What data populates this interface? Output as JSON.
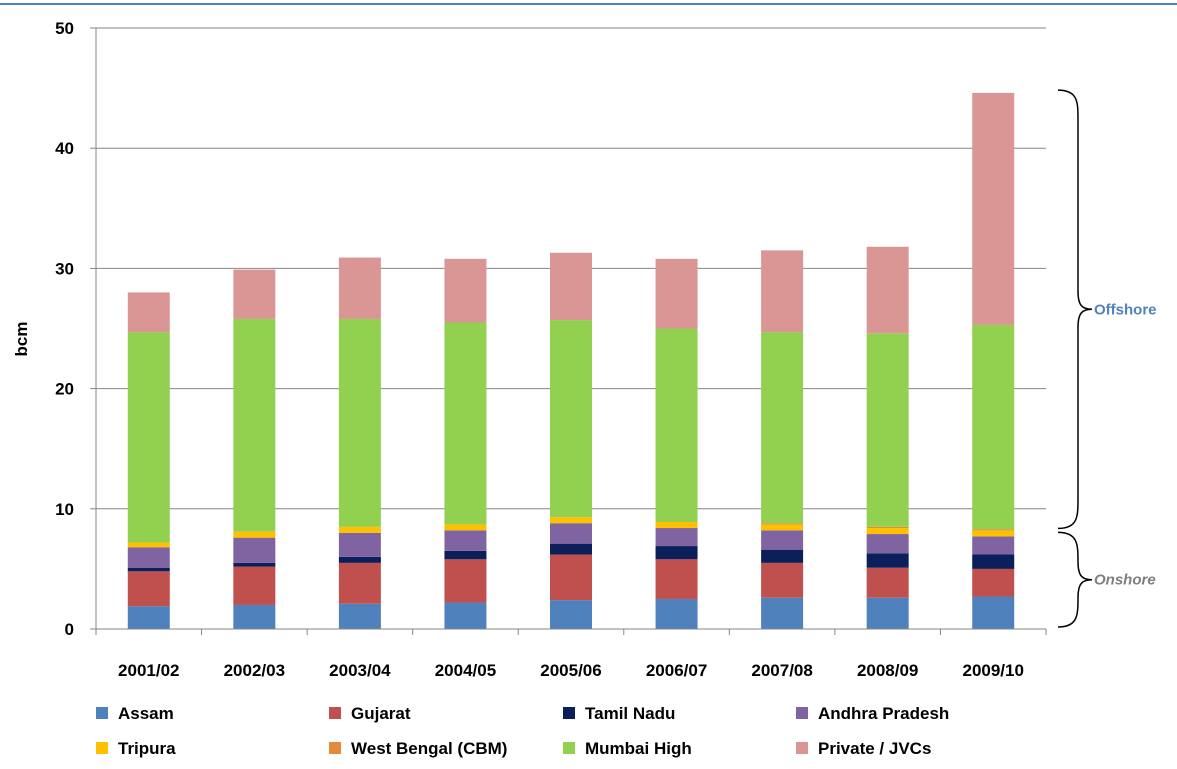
{
  "chart_data": {
    "type": "bar",
    "stacked": true,
    "ylabel": "bcm",
    "ylim": [
      0,
      50
    ],
    "yticks": [
      0,
      10,
      20,
      30,
      40,
      50
    ],
    "grid": true,
    "legend_position": "bottom",
    "categories": [
      "2001/02",
      "2002/03",
      "2003/04",
      "2004/05",
      "2005/06",
      "2006/07",
      "2007/08",
      "2008/09",
      "2009/10"
    ],
    "series": [
      {
        "name": "Assam",
        "color": "#4f81bd",
        "values": [
          1.9,
          2.0,
          2.1,
          2.2,
          2.4,
          2.5,
          2.6,
          2.6,
          2.7
        ]
      },
      {
        "name": "Gujarat",
        "color": "#c0504d",
        "values": [
          2.9,
          3.2,
          3.4,
          3.6,
          3.8,
          3.3,
          2.9,
          2.5,
          2.3
        ]
      },
      {
        "name": "Tamil Nadu",
        "color": "#0b1f5a",
        "values": [
          0.3,
          0.3,
          0.5,
          0.7,
          0.9,
          1.1,
          1.1,
          1.2,
          1.2
        ]
      },
      {
        "name": "Andhra Pradesh",
        "color": "#8064a2",
        "values": [
          1.7,
          2.1,
          2.0,
          1.7,
          1.7,
          1.5,
          1.6,
          1.6,
          1.5
        ]
      },
      {
        "name": "Tripura",
        "color": "#ffc000",
        "values": [
          0.4,
          0.5,
          0.5,
          0.5,
          0.5,
          0.5,
          0.5,
          0.5,
          0.5
        ]
      },
      {
        "name": "West Bengal (CBM)",
        "color": "#e58a3c",
        "values": [
          0.0,
          0.0,
          0.0,
          0.0,
          0.0,
          0.0,
          0.1,
          0.1,
          0.1
        ]
      },
      {
        "name": "Mumbai High",
        "color": "#92d050",
        "values": [
          17.5,
          17.7,
          17.3,
          16.8,
          16.4,
          16.1,
          15.9,
          16.1,
          17.0
        ]
      },
      {
        "name": "Private / JVCs",
        "color": "#d99694",
        "values": [
          3.3,
          4.1,
          5.1,
          5.3,
          5.6,
          5.8,
          6.8,
          7.2,
          19.3
        ]
      }
    ],
    "annotations": [
      {
        "label": "Offshore",
        "color": "#4f81bd",
        "italic": false,
        "from": 8.2,
        "to": 45.0
      },
      {
        "label": "Onshore",
        "color": "#7f7f7f",
        "italic": true,
        "from": 0.0,
        "to": 8.2
      }
    ]
  }
}
